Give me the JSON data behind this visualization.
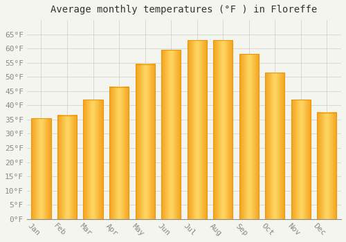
{
  "title": "Average monthly temperatures (°F ) in Floreffe",
  "months": [
    "Jan",
    "Feb",
    "Mar",
    "Apr",
    "May",
    "Jun",
    "Jul",
    "Aug",
    "Sep",
    "Oct",
    "Nov",
    "Dec"
  ],
  "values": [
    35.5,
    36.5,
    42.0,
    46.5,
    54.5,
    59.5,
    63.0,
    63.0,
    58.0,
    51.5,
    42.0,
    37.5
  ],
  "bar_color_center": "#FFD966",
  "bar_color_edge": "#F5A623",
  "background_color": "#F5F5F0",
  "grid_color": "#CCCCCC",
  "ylim": [
    0,
    70
  ],
  "yticks": [
    0,
    5,
    10,
    15,
    20,
    25,
    30,
    35,
    40,
    45,
    50,
    55,
    60,
    65
  ],
  "title_fontsize": 10,
  "tick_fontsize": 8,
  "title_font_family": "monospace",
  "tick_font_family": "monospace",
  "tick_color": "#888888",
  "xlabel_rotation": -45
}
